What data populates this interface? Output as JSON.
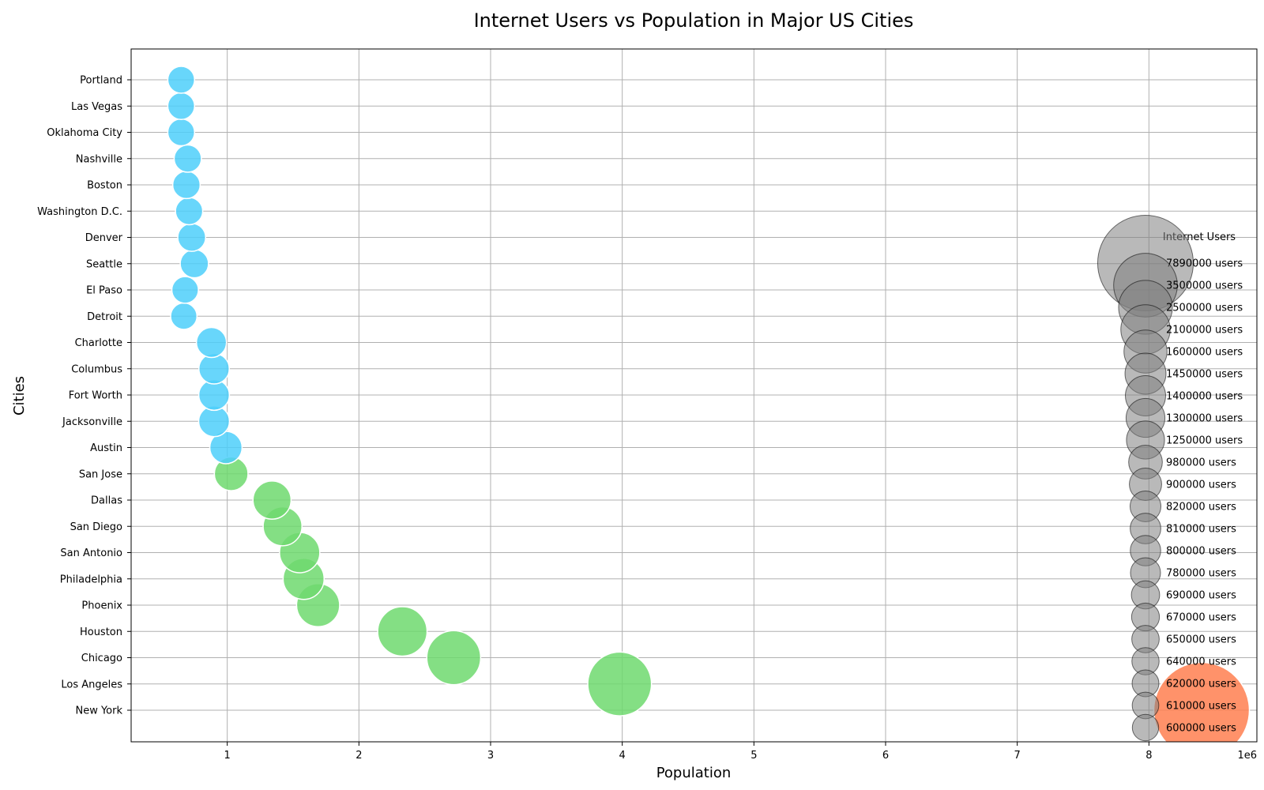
{
  "chart_data": {
    "type": "scatter",
    "title": "Internet Users vs Population in Major US Cities",
    "xlabel": "Population",
    "ylabel": "Cities",
    "x_offset_label": "1e6",
    "xlim": [
      270000,
      8820000
    ],
    "x_ticks": [
      1000000,
      2000000,
      3000000,
      4000000,
      5000000,
      6000000,
      7000000,
      8000000
    ],
    "x_tick_labels": [
      "1",
      "2",
      "3",
      "4",
      "5",
      "6",
      "7",
      "8"
    ],
    "grid": true,
    "colors": {
      "low": "#4dcffa",
      "mid": "#6ed96e",
      "high": "#ff7f50",
      "legend_bubble": "#808080",
      "grid": "#b0b0b0"
    },
    "points": [
      {
        "city": "New York",
        "population": 8400000,
        "internet_users": 7890000,
        "tier": "high"
      },
      {
        "city": "Los Angeles",
        "population": 3980000,
        "internet_users": 3500000,
        "tier": "mid"
      },
      {
        "city": "Chicago",
        "population": 2720000,
        "internet_users": 2500000,
        "tier": "mid"
      },
      {
        "city": "Houston",
        "population": 2330000,
        "internet_users": 2100000,
        "tier": "mid"
      },
      {
        "city": "Phoenix",
        "population": 1690000,
        "internet_users": 1600000,
        "tier": "mid"
      },
      {
        "city": "Philadelphia",
        "population": 1580000,
        "internet_users": 1450000,
        "tier": "mid"
      },
      {
        "city": "San Antonio",
        "population": 1550000,
        "internet_users": 1400000,
        "tier": "mid"
      },
      {
        "city": "San Diego",
        "population": 1420000,
        "internet_users": 1300000,
        "tier": "mid"
      },
      {
        "city": "Dallas",
        "population": 1340000,
        "internet_users": 1250000,
        "tier": "mid"
      },
      {
        "city": "San Jose",
        "population": 1030000,
        "internet_users": 980000,
        "tier": "mid"
      },
      {
        "city": "Austin",
        "population": 990000,
        "internet_users": 900000,
        "tier": "low"
      },
      {
        "city": "Jacksonville",
        "population": 900000,
        "internet_users": 820000,
        "tier": "low"
      },
      {
        "city": "Fort Worth",
        "population": 900000,
        "internet_users": 810000,
        "tier": "low"
      },
      {
        "city": "Columbus",
        "population": 900000,
        "internet_users": 800000,
        "tier": "low"
      },
      {
        "city": "Charlotte",
        "population": 880000,
        "internet_users": 780000,
        "tier": "low"
      },
      {
        "city": "Detroit",
        "population": 670000,
        "internet_users": 600000,
        "tier": "low"
      },
      {
        "city": "El Paso",
        "population": 680000,
        "internet_users": 610000,
        "tier": "low"
      },
      {
        "city": "Seattle",
        "population": 750000,
        "internet_users": 690000,
        "tier": "low"
      },
      {
        "city": "Denver",
        "population": 730000,
        "internet_users": 670000,
        "tier": "low"
      },
      {
        "city": "Washington D.C.",
        "population": 710000,
        "internet_users": 640000,
        "tier": "low"
      },
      {
        "city": "Boston",
        "population": 690000,
        "internet_users": 650000,
        "tier": "low"
      },
      {
        "city": "Nashville",
        "population": 700000,
        "internet_users": 640000,
        "tier": "low"
      },
      {
        "city": "Oklahoma City",
        "population": 650000,
        "internet_users": 620000,
        "tier": "low"
      },
      {
        "city": "Las Vegas",
        "population": 650000,
        "internet_users": 620000,
        "tier": "low"
      },
      {
        "city": "Portland",
        "population": 650000,
        "internet_users": 620000,
        "tier": "low"
      }
    ],
    "legend": {
      "title": "Internet Users",
      "placement": "right",
      "entries": [
        {
          "value": 7890000,
          "label": "7890000 users"
        },
        {
          "value": 3500000,
          "label": "3500000 users"
        },
        {
          "value": 2500000,
          "label": "2500000 users"
        },
        {
          "value": 2100000,
          "label": "2100000 users"
        },
        {
          "value": 1600000,
          "label": "1600000 users"
        },
        {
          "value": 1450000,
          "label": "1450000 users"
        },
        {
          "value": 1400000,
          "label": "1400000 users"
        },
        {
          "value": 1300000,
          "label": "1300000 users"
        },
        {
          "value": 1250000,
          "label": "1250000 users"
        },
        {
          "value": 980000,
          "label": "980000 users"
        },
        {
          "value": 900000,
          "label": "900000 users"
        },
        {
          "value": 820000,
          "label": "820000 users"
        },
        {
          "value": 810000,
          "label": "810000 users"
        },
        {
          "value": 800000,
          "label": "800000 users"
        },
        {
          "value": 780000,
          "label": "780000 users"
        },
        {
          "value": 690000,
          "label": "690000 users"
        },
        {
          "value": 670000,
          "label": "670000 users"
        },
        {
          "value": 650000,
          "label": "650000 users"
        },
        {
          "value": 640000,
          "label": "640000 users"
        },
        {
          "value": 620000,
          "label": "620000 users"
        },
        {
          "value": 610000,
          "label": "610000 users"
        },
        {
          "value": 600000,
          "label": "600000 users"
        }
      ]
    }
  }
}
